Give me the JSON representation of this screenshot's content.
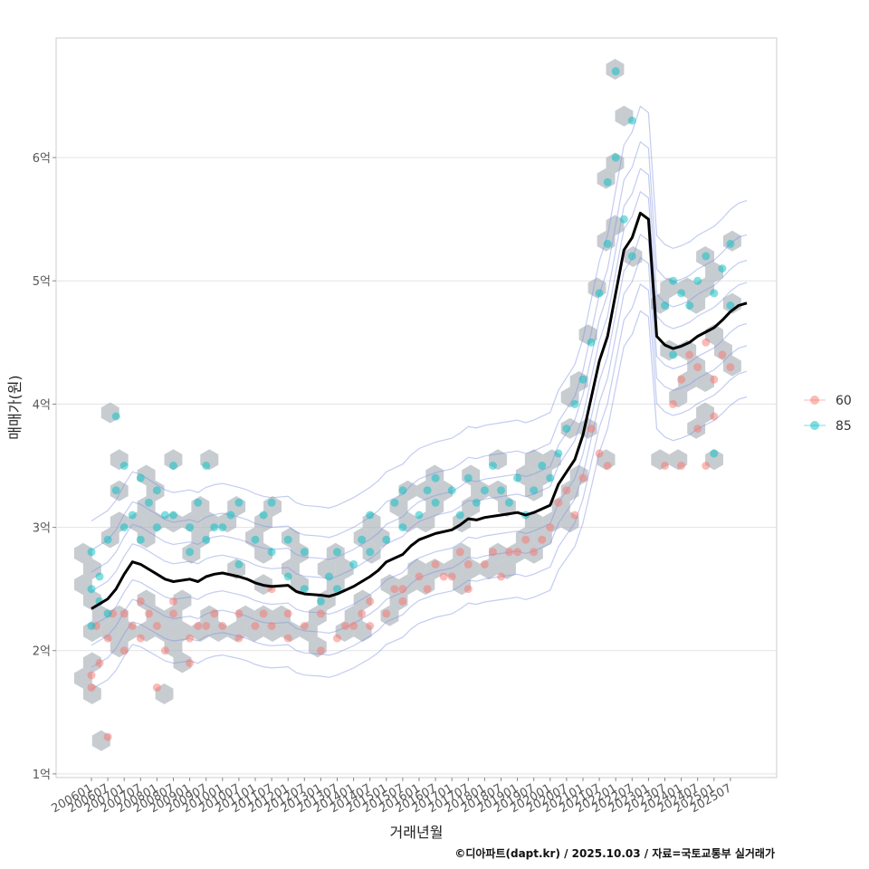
{
  "chart_data": {
    "type": "scatter",
    "title": "",
    "xlabel": "거래년월",
    "ylabel": "매매가(원)",
    "x_categories": [
      "200601",
      "200607",
      "200701",
      "200707",
      "200801",
      "200807",
      "200901",
      "200907",
      "201001",
      "201007",
      "201101",
      "201107",
      "201201",
      "201207",
      "201301",
      "201307",
      "201401",
      "201407",
      "201501",
      "201507",
      "201601",
      "201607",
      "201701",
      "201707",
      "201801",
      "201807",
      "201901",
      "201907",
      "202001",
      "202007",
      "202101",
      "202107",
      "202201",
      "202207",
      "202301",
      "202307",
      "202401",
      "202407",
      "202501",
      "202507"
    ],
    "y_ticks": [
      {
        "value": 1,
        "label": "1억"
      },
      {
        "value": 2,
        "label": "2억"
      },
      {
        "value": 3,
        "label": "3억"
      },
      {
        "value": 4,
        "label": "4억"
      },
      {
        "value": 5,
        "label": "5억"
      },
      {
        "value": 6,
        "label": "6억"
      }
    ],
    "ylim": [
      0.97,
      6.97
    ],
    "grid": true,
    "legend_position": "right",
    "series": [
      {
        "name": "60",
        "color": "#F8766D",
        "points": [
          [
            0,
            1.7
          ],
          [
            0,
            1.8
          ],
          [
            0.3,
            2.2
          ],
          [
            0.5,
            1.9
          ],
          [
            1,
            1.3
          ],
          [
            1,
            2.1
          ],
          [
            1.3,
            2.3
          ],
          [
            2,
            2.0
          ],
          [
            2,
            2.3
          ],
          [
            2.5,
            2.2
          ],
          [
            3,
            2.1
          ],
          [
            3,
            2.4
          ],
          [
            3.5,
            2.3
          ],
          [
            4,
            1.7
          ],
          [
            4,
            2.2
          ],
          [
            4.5,
            2.0
          ],
          [
            5,
            2.3
          ],
          [
            5,
            2.4
          ],
          [
            6,
            1.9
          ],
          [
            6,
            2.1
          ],
          [
            6.5,
            2.2
          ],
          [
            7,
            2.2
          ],
          [
            7.5,
            2.3
          ],
          [
            8,
            2.2
          ],
          [
            9,
            2.1
          ],
          [
            9,
            2.3
          ],
          [
            10,
            2.2
          ],
          [
            10.5,
            2.3
          ],
          [
            11,
            2.2
          ],
          [
            11,
            2.5
          ],
          [
            12,
            2.1
          ],
          [
            12,
            2.3
          ],
          [
            13,
            2.2
          ],
          [
            14,
            2.0
          ],
          [
            14,
            2.3
          ],
          [
            15,
            2.1
          ],
          [
            15.5,
            2.2
          ],
          [
            16,
            2.2
          ],
          [
            16.5,
            2.3
          ],
          [
            17,
            2.2
          ],
          [
            17,
            2.4
          ],
          [
            18,
            2.3
          ],
          [
            18.5,
            2.5
          ],
          [
            19,
            2.5
          ],
          [
            19,
            2.4
          ],
          [
            20,
            2.6
          ],
          [
            20.5,
            2.5
          ],
          [
            21,
            2.7
          ],
          [
            21.5,
            2.6
          ],
          [
            22,
            2.6
          ],
          [
            22.5,
            2.8
          ],
          [
            23,
            2.7
          ],
          [
            23,
            2.5
          ],
          [
            24,
            2.7
          ],
          [
            24.5,
            2.8
          ],
          [
            25,
            2.6
          ],
          [
            25.5,
            2.8
          ],
          [
            26,
            2.8
          ],
          [
            26.5,
            2.9
          ],
          [
            27,
            2.8
          ],
          [
            27.5,
            2.9
          ],
          [
            28,
            3.0
          ],
          [
            28.5,
            3.2
          ],
          [
            29,
            3.3
          ],
          [
            29.5,
            3.1
          ],
          [
            30,
            3.4
          ],
          [
            30.5,
            3.8
          ],
          [
            31,
            3.6
          ],
          [
            31.5,
            3.5
          ],
          [
            35,
            3.5
          ],
          [
            35.5,
            4.0
          ],
          [
            36,
            4.2
          ],
          [
            36.5,
            4.4
          ],
          [
            37,
            4.3
          ],
          [
            37.5,
            4.5
          ],
          [
            38,
            4.2
          ],
          [
            38.5,
            4.4
          ],
          [
            39,
            4.3
          ],
          [
            36,
            3.5
          ],
          [
            37,
            3.8
          ],
          [
            38,
            3.9
          ],
          [
            37.5,
            3.5
          ]
        ]
      },
      {
        "name": "85",
        "color": "#00BFC4",
        "points": [
          [
            0,
            2.2
          ],
          [
            0,
            2.5
          ],
          [
            0,
            2.8
          ],
          [
            0.5,
            2.4
          ],
          [
            0.5,
            2.6
          ],
          [
            1,
            2.3
          ],
          [
            1,
            2.9
          ],
          [
            1.5,
            3.3
          ],
          [
            1.5,
            3.9
          ],
          [
            2,
            3.0
          ],
          [
            2,
            3.5
          ],
          [
            2.5,
            3.1
          ],
          [
            3,
            2.9
          ],
          [
            3,
            3.4
          ],
          [
            3.5,
            3.2
          ],
          [
            4,
            3.0
          ],
          [
            4,
            3.3
          ],
          [
            4.5,
            3.1
          ],
          [
            5,
            3.1
          ],
          [
            5,
            3.5
          ],
          [
            6,
            2.8
          ],
          [
            6,
            3.0
          ],
          [
            6.5,
            3.2
          ],
          [
            7,
            2.9
          ],
          [
            7.5,
            3.0
          ],
          [
            7,
            3.5
          ],
          [
            8,
            3.0
          ],
          [
            8.5,
            3.1
          ],
          [
            9,
            3.2
          ],
          [
            9,
            2.7
          ],
          [
            10,
            2.9
          ],
          [
            10.5,
            3.1
          ],
          [
            11,
            2.8
          ],
          [
            11,
            3.2
          ],
          [
            12,
            2.6
          ],
          [
            12,
            2.9
          ],
          [
            13,
            2.5
          ],
          [
            13,
            2.8
          ],
          [
            14,
            2.4
          ],
          [
            14.5,
            2.6
          ],
          [
            15,
            2.5
          ],
          [
            15,
            2.8
          ],
          [
            16,
            2.7
          ],
          [
            16.5,
            2.9
          ],
          [
            17,
            2.8
          ],
          [
            17,
            3.1
          ],
          [
            18,
            2.9
          ],
          [
            18.5,
            3.2
          ],
          [
            19,
            3.0
          ],
          [
            19,
            3.3
          ],
          [
            20,
            3.1
          ],
          [
            20.5,
            3.3
          ],
          [
            21,
            3.2
          ],
          [
            21,
            3.4
          ],
          [
            22,
            3.3
          ],
          [
            22.5,
            3.1
          ],
          [
            23,
            3.4
          ],
          [
            23.5,
            3.2
          ],
          [
            24,
            3.3
          ],
          [
            24.5,
            3.5
          ],
          [
            25,
            3.3
          ],
          [
            25.5,
            3.2
          ],
          [
            26,
            3.4
          ],
          [
            26.5,
            3.1
          ],
          [
            27,
            3.3
          ],
          [
            27.5,
            3.5
          ],
          [
            28,
            3.4
          ],
          [
            28.5,
            3.6
          ],
          [
            29,
            3.8
          ],
          [
            29.5,
            4.0
          ],
          [
            30,
            4.2
          ],
          [
            30.5,
            4.5
          ],
          [
            31,
            4.9
          ],
          [
            31.5,
            5.3
          ],
          [
            31.5,
            5.8
          ],
          [
            32,
            6.0
          ],
          [
            32,
            6.7
          ],
          [
            32.5,
            5.5
          ],
          [
            33,
            5.2
          ],
          [
            33,
            6.3
          ],
          [
            35,
            4.8
          ],
          [
            35.5,
            5.0
          ],
          [
            36,
            4.9
          ],
          [
            36.5,
            4.8
          ],
          [
            37,
            5.0
          ],
          [
            37.5,
            5.2
          ],
          [
            38,
            4.9
          ],
          [
            38.5,
            5.1
          ],
          [
            39,
            5.3
          ],
          [
            39,
            4.8
          ],
          [
            35.5,
            4.4
          ],
          [
            38,
            3.6
          ]
        ]
      }
    ],
    "trend": {
      "name": "median",
      "color": "#000000",
      "points": [
        [
          0,
          2.34
        ],
        [
          1,
          2.42
        ],
        [
          1.5,
          2.5
        ],
        [
          2,
          2.62
        ],
        [
          2.5,
          2.72
        ],
        [
          3,
          2.7
        ],
        [
          3.5,
          2.66
        ],
        [
          4,
          2.62
        ],
        [
          4.5,
          2.58
        ],
        [
          5,
          2.56
        ],
        [
          6,
          2.58
        ],
        [
          6.5,
          2.56
        ],
        [
          7,
          2.6
        ],
        [
          7.5,
          2.62
        ],
        [
          8,
          2.63
        ],
        [
          9,
          2.6
        ],
        [
          9.5,
          2.58
        ],
        [
          10,
          2.55
        ],
        [
          10.5,
          2.53
        ],
        [
          11,
          2.52
        ],
        [
          12,
          2.53
        ],
        [
          12.5,
          2.48
        ],
        [
          13,
          2.46
        ],
        [
          14,
          2.45
        ],
        [
          14.5,
          2.44
        ],
        [
          15,
          2.46
        ],
        [
          16,
          2.52
        ],
        [
          17,
          2.6
        ],
        [
          17.5,
          2.65
        ],
        [
          18,
          2.72
        ],
        [
          19,
          2.78
        ],
        [
          19.5,
          2.85
        ],
        [
          20,
          2.9
        ],
        [
          21,
          2.95
        ],
        [
          22,
          2.98
        ],
        [
          22.5,
          3.02
        ],
        [
          23,
          3.07
        ],
        [
          23.5,
          3.06
        ],
        [
          24,
          3.08
        ],
        [
          25,
          3.1
        ],
        [
          26,
          3.12
        ],
        [
          26.5,
          3.1
        ],
        [
          27,
          3.12
        ],
        [
          28,
          3.18
        ],
        [
          28.5,
          3.35
        ],
        [
          29,
          3.45
        ],
        [
          29.5,
          3.55
        ],
        [
          30,
          3.75
        ],
        [
          30.5,
          4.05
        ],
        [
          31,
          4.35
        ],
        [
          31.5,
          4.55
        ],
        [
          32,
          4.9
        ],
        [
          32.5,
          5.25
        ],
        [
          33,
          5.35
        ],
        [
          33.5,
          5.55
        ],
        [
          34,
          5.5
        ],
        [
          34.5,
          4.55
        ],
        [
          35,
          4.48
        ],
        [
          35.5,
          4.45
        ],
        [
          36,
          4.47
        ],
        [
          36.5,
          4.5
        ],
        [
          37,
          4.55
        ],
        [
          38,
          4.62
        ],
        [
          38.5,
          4.68
        ],
        [
          39,
          4.75
        ],
        [
          39.5,
          4.8
        ],
        [
          40,
          4.82
        ]
      ]
    },
    "legend": [
      {
        "label": "60",
        "color": "#F8766D"
      },
      {
        "label": "85",
        "color": "#00BFC4"
      }
    ]
  },
  "caption": "©디아파트(dapt.kr) / 2025.10.03 / 자료=국토교통부 실거래가"
}
